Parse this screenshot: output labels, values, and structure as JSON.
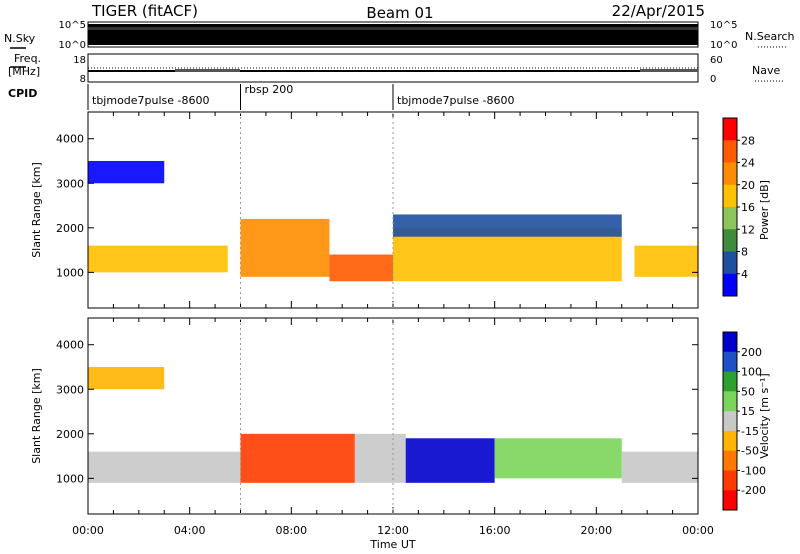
{
  "header": {
    "radar": "TIGER (fitACF)",
    "beam": "Beam 01",
    "date": "22/Apr/2015"
  },
  "top_panels": {
    "nsky": {
      "label": "N.Sky",
      "ticks": [
        "10^5",
        "10^0"
      ]
    },
    "nsearch": {
      "label": "N.Search",
      "ticks": [
        "10^5",
        "10^0"
      ]
    },
    "freq": {
      "label_line1": "Freq.",
      "label_line2": "[MHz]",
      "ticks": [
        "18",
        "8"
      ]
    },
    "nave": {
      "label": "Nave",
      "ticks": [
        "60",
        "0"
      ]
    },
    "cpid": {
      "label": "CPID",
      "segments": [
        {
          "name": "tbjmode7pulse -8600",
          "start_hour": 0,
          "end_hour": 6
        },
        {
          "name": "rbsp 200",
          "start_hour": 6,
          "end_hour": 12
        },
        {
          "name": "tbjmode7pulse -8600",
          "start_hour": 12,
          "end_hour": 24
        }
      ]
    }
  },
  "axes": {
    "xlabel": "Time UT",
    "xtick_labels": [
      "00:00",
      "04:00",
      "08:00",
      "12:00",
      "16:00",
      "20:00",
      "00:00"
    ],
    "ylabel": "Slant Range [km]",
    "ytick_labels": [
      "1000",
      "2000",
      "3000",
      "4000"
    ]
  },
  "colorbars": {
    "power": {
      "label": "Power [dB]",
      "ticks": [
        "28",
        "24",
        "20",
        "16",
        "12",
        "8",
        "4"
      ],
      "colors": [
        "#ff0000",
        "#ff5a00",
        "#ff8c00",
        "#ffc000",
        "#8cc65a",
        "#3c8c3c",
        "#1e50a0",
        "#0000ff"
      ]
    },
    "velocity": {
      "label": "Velocity [m s⁻¹]",
      "ticks": [
        "200",
        "100",
        "50",
        "15",
        "-15",
        "-50",
        "-100",
        "-200"
      ],
      "colors": [
        "#0000cc",
        "#1e50c8",
        "#2ea02e",
        "#7ad65a",
        "#c8c8c8",
        "#ffb400",
        "#ff7800",
        "#ff3c00",
        "#ff0000"
      ]
    }
  },
  "chart_data": [
    {
      "type": "heatmap",
      "title": "Power",
      "xlabel": "Time UT",
      "ylabel": "Slant Range [km]",
      "xlim": [
        0,
        24
      ],
      "ylim": [
        200,
        4600
      ],
      "value_label": "Power [dB]",
      "value_range": [
        4,
        30
      ],
      "bands": [
        {
          "t0": 0.0,
          "t1": 5.5,
          "r0": 1000,
          "r1": 1600,
          "value": 18
        },
        {
          "t0": 6.0,
          "t1": 9.5,
          "r0": 900,
          "r1": 2200,
          "value": 22
        },
        {
          "t0": 9.5,
          "t1": 12.0,
          "r0": 800,
          "r1": 1400,
          "value": 26
        },
        {
          "t0": 12.0,
          "t1": 21.0,
          "r0": 800,
          "r1": 2000,
          "value": 18
        },
        {
          "t0": 12.0,
          "t1": 21.0,
          "r0": 1800,
          "r1": 2300,
          "value": 8
        },
        {
          "t0": 21.5,
          "t1": 24.0,
          "r0": 900,
          "r1": 1600,
          "value": 18
        },
        {
          "t0": 0.0,
          "t1": 3.0,
          "r0": 3000,
          "r1": 3500,
          "value": 6
        }
      ]
    },
    {
      "type": "heatmap",
      "title": "Velocity",
      "xlabel": "Time UT",
      "ylabel": "Slant Range [km]",
      "xlim": [
        0,
        24
      ],
      "ylim": [
        200,
        4600
      ],
      "value_label": "Velocity [m s⁻¹]",
      "value_range": [
        -200,
        200
      ],
      "bands": [
        {
          "t0": 0.0,
          "t1": 6.0,
          "r0": 900,
          "r1": 1600,
          "value": 0
        },
        {
          "t0": 6.0,
          "t1": 10.5,
          "r0": 900,
          "r1": 2000,
          "value": -150
        },
        {
          "t0": 10.5,
          "t1": 12.5,
          "r0": 900,
          "r1": 2000,
          "value": 0
        },
        {
          "t0": 12.5,
          "t1": 16.0,
          "r0": 900,
          "r1": 1900,
          "value": 200
        },
        {
          "t0": 16.0,
          "t1": 21.0,
          "r0": 1000,
          "r1": 1900,
          "value": 60
        },
        {
          "t0": 21.0,
          "t1": 24.0,
          "r0": 900,
          "r1": 1600,
          "value": 0
        },
        {
          "t0": 0.0,
          "t1": 3.0,
          "r0": 3000,
          "r1": 3500,
          "value": -30
        }
      ]
    }
  ]
}
